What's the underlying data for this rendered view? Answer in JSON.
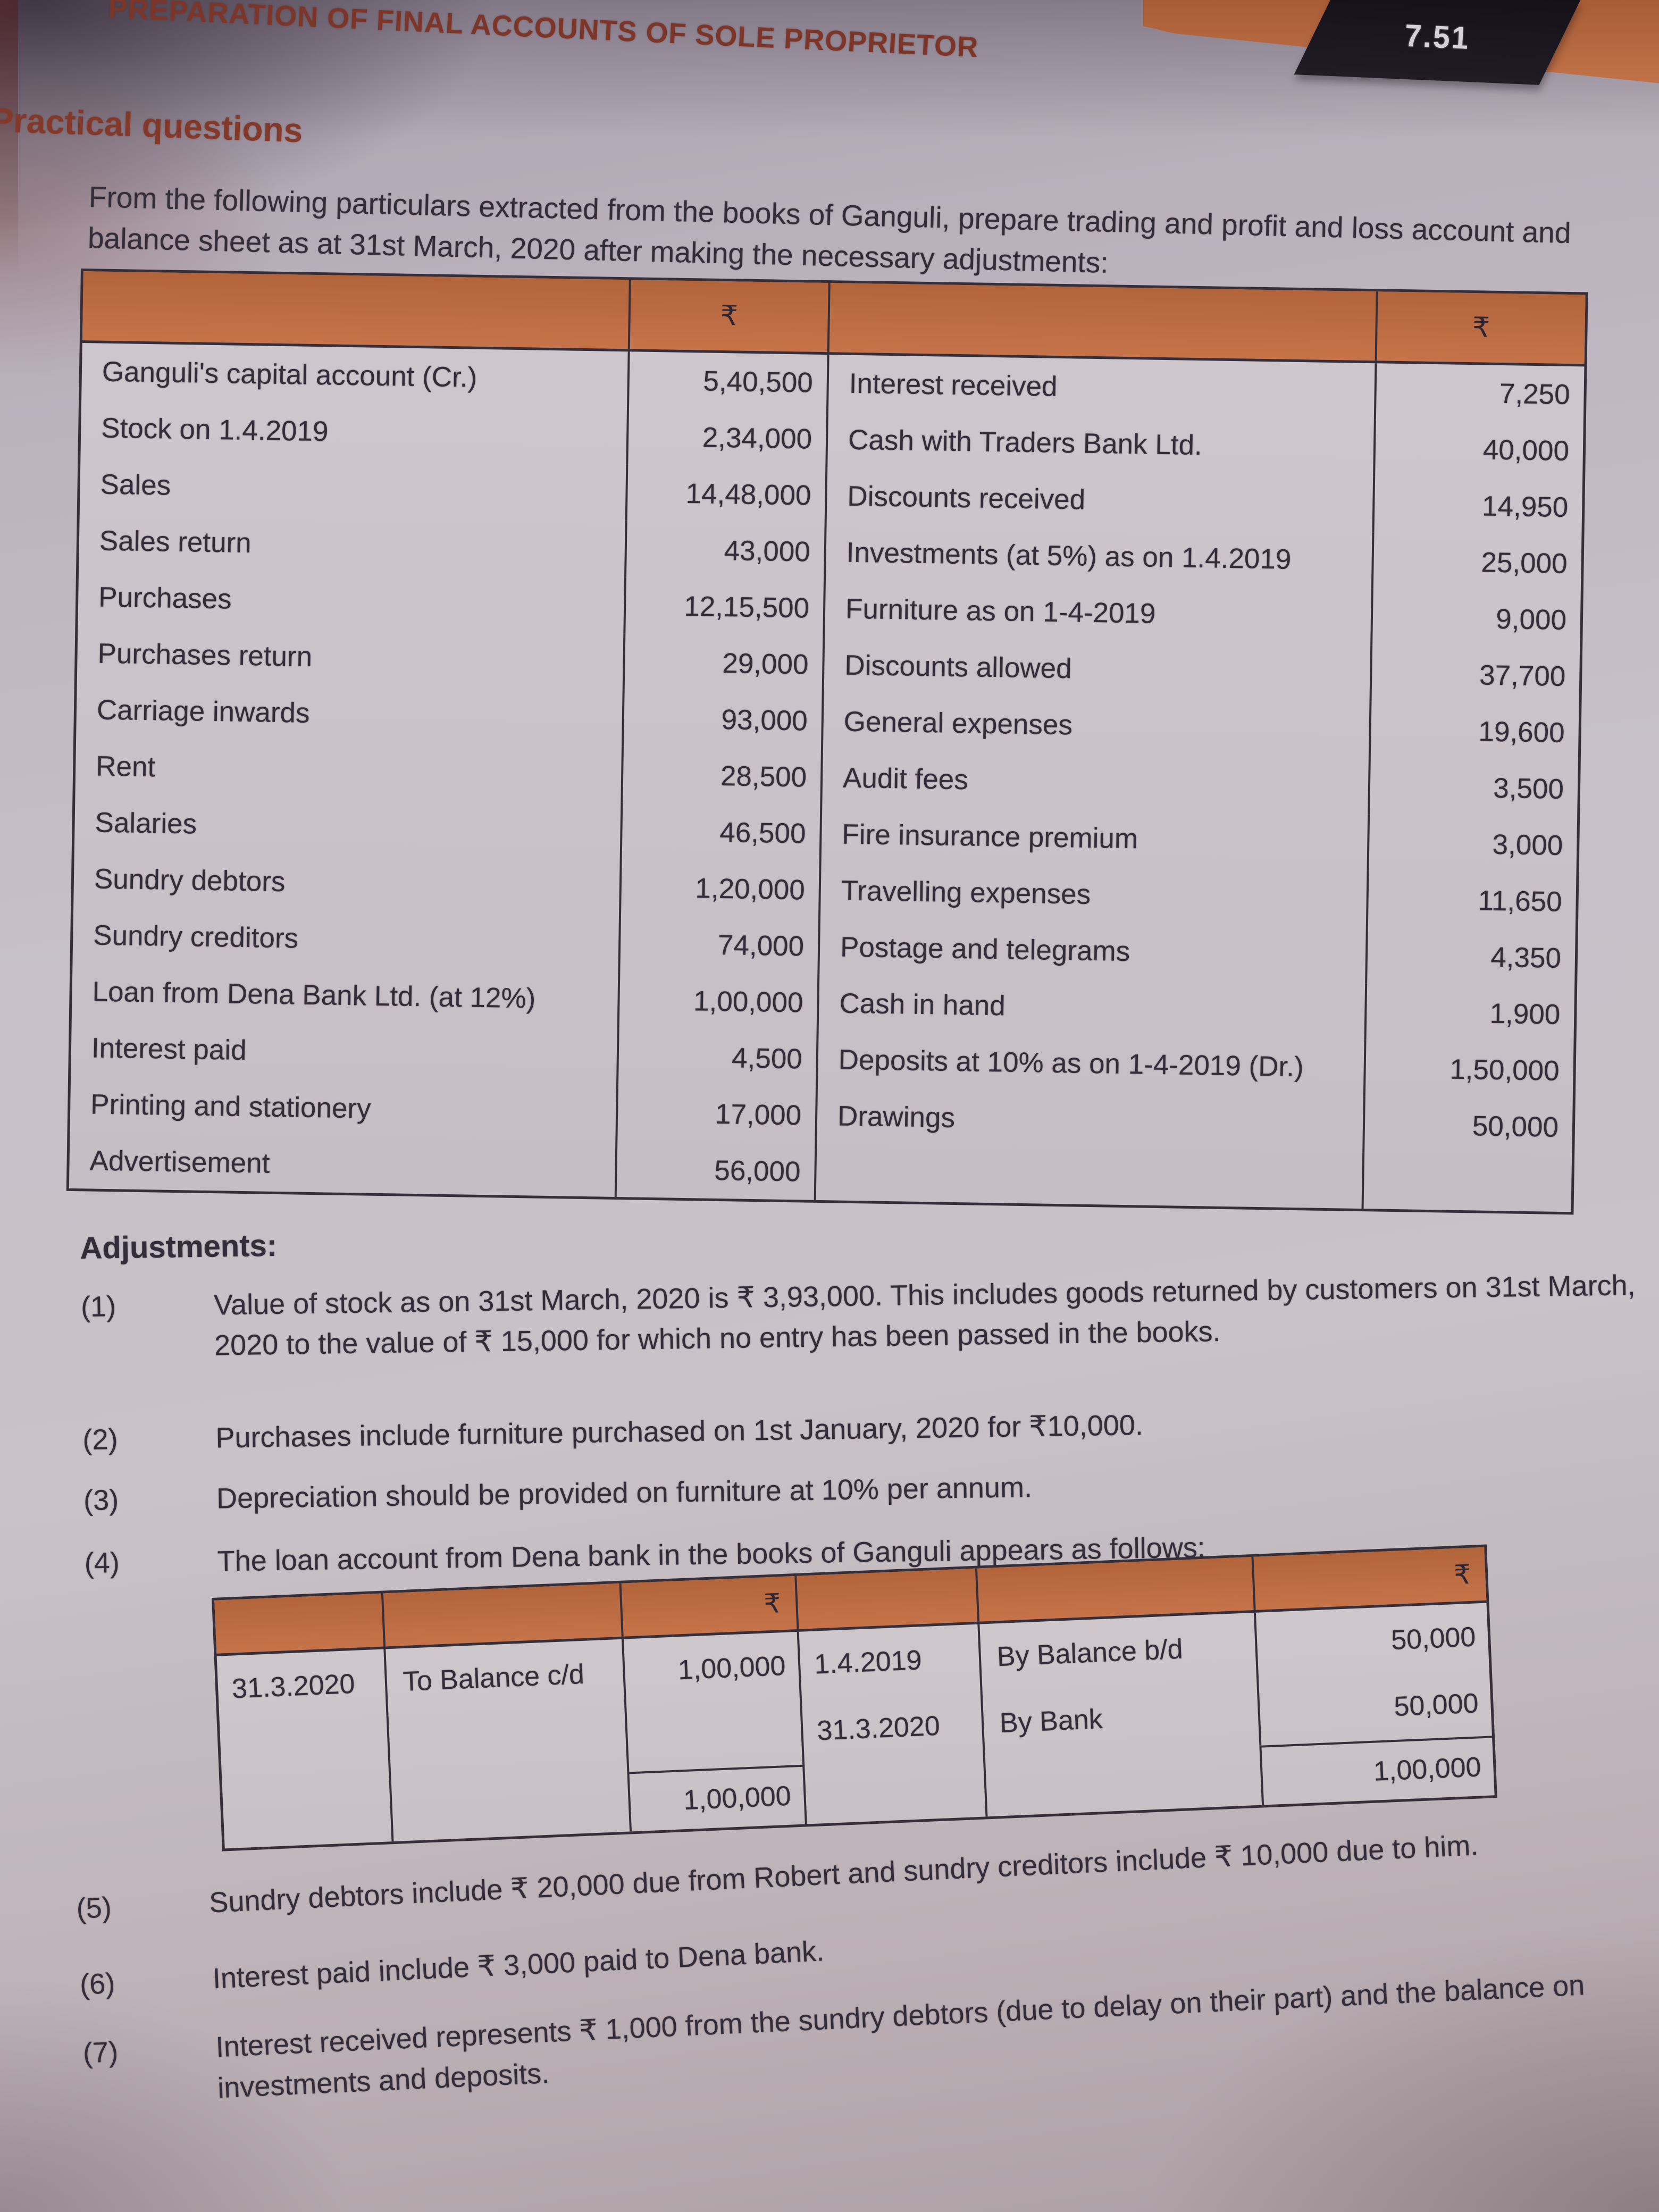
{
  "header": {
    "title": "PREPARATION OF FINAL ACCOUNTS OF SOLE PROPRIETOR",
    "page_number": "7.51"
  },
  "practical_heading": "Practical questions",
  "intro": "From the following particulars extracted from the books of Ganguli, prepare trading and profit and loss account and balance sheet as at 31st March, 2020 after making the necessary adjustments:",
  "trial_balance": {
    "currency_symbol": "₹",
    "left_rows": [
      {
        "label": "Ganguli's capital account (Cr.)",
        "amount": "5,40,500"
      },
      {
        "label": "Stock on 1.4.2019",
        "amount": "2,34,000"
      },
      {
        "label": "Sales",
        "amount": "14,48,000"
      },
      {
        "label": "Sales return",
        "amount": "43,000"
      },
      {
        "label": "Purchases",
        "amount": "12,15,500"
      },
      {
        "label": "Purchases return",
        "amount": "29,000"
      },
      {
        "label": "Carriage inwards",
        "amount": "93,000"
      },
      {
        "label": "Rent",
        "amount": "28,500"
      },
      {
        "label": "Salaries",
        "amount": "46,500"
      },
      {
        "label": "Sundry debtors",
        "amount": "1,20,000"
      },
      {
        "label": "Sundry creditors",
        "amount": "74,000"
      },
      {
        "label": "Loan from Dena Bank Ltd. (at 12%)",
        "amount": "1,00,000"
      },
      {
        "label": "Interest paid",
        "amount": "4,500"
      },
      {
        "label": "Printing and stationery",
        "amount": "17,000"
      },
      {
        "label": "Advertisement",
        "amount": "56,000"
      }
    ],
    "right_rows": [
      {
        "label": "Interest received",
        "amount": "7,250"
      },
      {
        "label": "Cash with Traders Bank Ltd.",
        "amount": "40,000"
      },
      {
        "label": "Discounts received",
        "amount": "14,950"
      },
      {
        "label": "Investments (at 5%) as on 1.4.2019",
        "amount": "25,000"
      },
      {
        "label": "Furniture as on 1-4-2019",
        "amount": "9,000"
      },
      {
        "label": "Discounts allowed",
        "amount": "37,700"
      },
      {
        "label": "General expenses",
        "amount": "19,600"
      },
      {
        "label": "Audit fees",
        "amount": "3,500"
      },
      {
        "label": "Fire insurance premium",
        "amount": "3,000"
      },
      {
        "label": "Travelling expenses",
        "amount": "11,650"
      },
      {
        "label": "Postage and telegrams",
        "amount": "4,350"
      },
      {
        "label": "Cash in hand",
        "amount": "1,900"
      },
      {
        "label": "Deposits at 10% as on 1-4-2019 (Dr.)",
        "amount": "1,50,000"
      },
      {
        "label": "Drawings",
        "amount": "50,000"
      }
    ]
  },
  "adjustments_heading": "Adjustments:",
  "adjustments": [
    {
      "num": "(1)",
      "text": "Value of stock as on 31st March, 2020 is ₹ 3,93,000. This includes goods returned by customers on 31st March, 2020 to the value of ₹ 15,000 for which no entry has been passed in the books."
    },
    {
      "num": "(2)",
      "text": "Purchases include furniture purchased on 1st January, 2020 for ₹10,000."
    },
    {
      "num": "(3)",
      "text": "Depreciation should be provided on furniture at 10% per annum."
    },
    {
      "num": "(4)",
      "text": "The loan account from Dena bank in the books of Ganguli appears as follows:"
    }
  ],
  "loan_account": {
    "currency_symbol": "₹",
    "rows": [
      {
        "dr_date": "31.3.2020",
        "dr_particulars": "To Balance c/d",
        "dr_amount": "1,00,000",
        "cr_date": "1.4.2019",
        "cr_particulars": "By Balance b/d",
        "cr_amount": "50,000"
      },
      {
        "dr_date": "",
        "dr_particulars": "",
        "dr_amount": "",
        "cr_date": "31.3.2020",
        "cr_particulars": "By Bank",
        "cr_amount": "50,000"
      }
    ],
    "totals": {
      "dr": "1,00,000",
      "cr": "1,00,000"
    }
  },
  "notes": [
    {
      "num": "(5)",
      "text": "Sundry debtors include ₹ 20,000 due from Robert and sundry creditors include ₹ 10,000 due to him."
    },
    {
      "num": "(6)",
      "text": "Interest paid include ₹ 3,000 paid to Dena bank."
    },
    {
      "num": "(7)",
      "text": "Interest received represents ₹ 1,000 from the sundry debtors (due to delay on their part) and the balance on investments and deposits."
    }
  ],
  "colors": {
    "accent_orange": "#bd6a40",
    "heading_red": "#7c3629",
    "tab_bg": "#17141b",
    "tab_text": "#d6d0d8",
    "rule": "#362f3a",
    "ink": "#332d3a"
  }
}
